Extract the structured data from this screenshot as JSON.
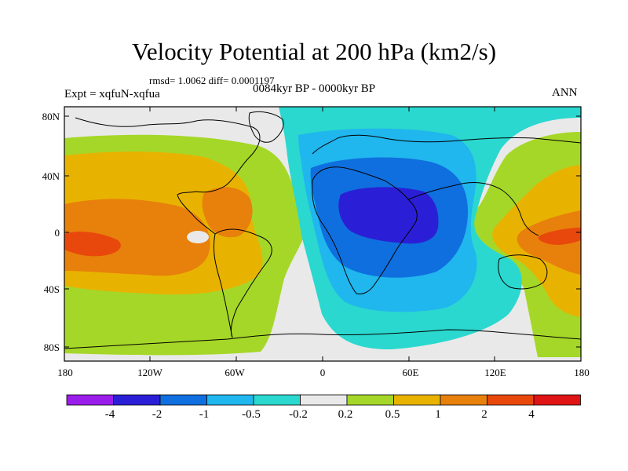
{
  "figure": {
    "title": "Velocity Potential at 200 hPa (km2/s)",
    "stats": "rmsd= 1.0062 diff= 0.0001197",
    "experiment": "Expt = xqfuN-xqfua",
    "period": "0084kyr BP - 0000kyr BP",
    "season": "ANN"
  },
  "axes": {
    "lat_labels": [
      "80N",
      "40N",
      "0",
      "40S",
      "80S"
    ],
    "lon_labels": [
      "180",
      "120W",
      "60W",
      "0",
      "60E",
      "120E",
      "180"
    ]
  },
  "colorbar": {
    "colors": [
      "#9b1dea",
      "#2a1fd6",
      "#0f6fde",
      "#20b6ee",
      "#2ad8cf",
      "#e9e9e9",
      "#a5d728",
      "#e8b300",
      "#e8800c",
      "#e8480b",
      "#e01414"
    ],
    "labels": [
      "-4",
      "-2",
      "-1",
      "-0.5",
      "-0.2",
      "0.2",
      "0.5",
      "1",
      "2",
      "4"
    ]
  }
}
